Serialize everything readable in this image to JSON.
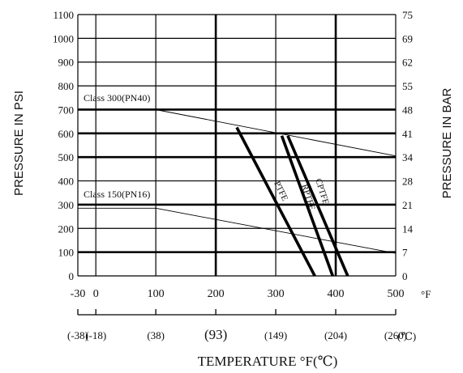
{
  "chart_data": {
    "type": "line",
    "x_axis": {
      "label": "TEMPERATURE °F(℃)",
      "unit_label": "°F",
      "range": [
        -30,
        500
      ],
      "ticks": [
        -30,
        0,
        100,
        200,
        300,
        400,
        500
      ],
      "tick_labels": [
        "-30",
        "0",
        "100",
        "200",
        "300",
        "400",
        "500"
      ],
      "celsius_ticks": [
        -30,
        0,
        100,
        200,
        300,
        400,
        500
      ],
      "celsius_labels": [
        "(-38)",
        "(-18)",
        "(38)",
        "(93)",
        "(149)",
        "(204)",
        "(260)"
      ],
      "celsius_unit": "(℃)"
    },
    "y_axis_left": {
      "label": "PRESSURE IN PSI",
      "range": [
        0,
        1100
      ],
      "ticks": [
        0,
        100,
        200,
        300,
        400,
        500,
        600,
        700,
        800,
        900,
        1000,
        1100
      ],
      "tick_labels": [
        "0",
        "100",
        "200",
        "300",
        "400",
        "500",
        "600",
        "700",
        "800",
        "900",
        "1000",
        "1100"
      ]
    },
    "y_axis_right": {
      "label": "PRESSURE IN BAR",
      "tick_labels": [
        "0",
        "7",
        "14",
        "21",
        "28",
        "34",
        "41",
        "48",
        "55",
        "62",
        "69",
        "75"
      ]
    },
    "grid": true,
    "series": [
      {
        "name": "Class 300(PN40)",
        "x": [
          -30,
          100,
          500
        ],
        "y": [
          700,
          700,
          505
        ],
        "style": "thin"
      },
      {
        "name": "Class 150(PN16)",
        "x": [
          -30,
          100,
          500
        ],
        "y": [
          285,
          285,
          95
        ],
        "style": "thin"
      },
      {
        "name": "PTFE",
        "x": [
          235,
          365
        ],
        "y": [
          625,
          0
        ],
        "style": "thick"
      },
      {
        "name": "RPTFE",
        "x": [
          310,
          395
        ],
        "y": [
          590,
          0
        ],
        "style": "thick"
      },
      {
        "name": "CPTFE",
        "x": [
          320,
          420
        ],
        "y": [
          590,
          0
        ],
        "style": "thick"
      }
    ]
  }
}
